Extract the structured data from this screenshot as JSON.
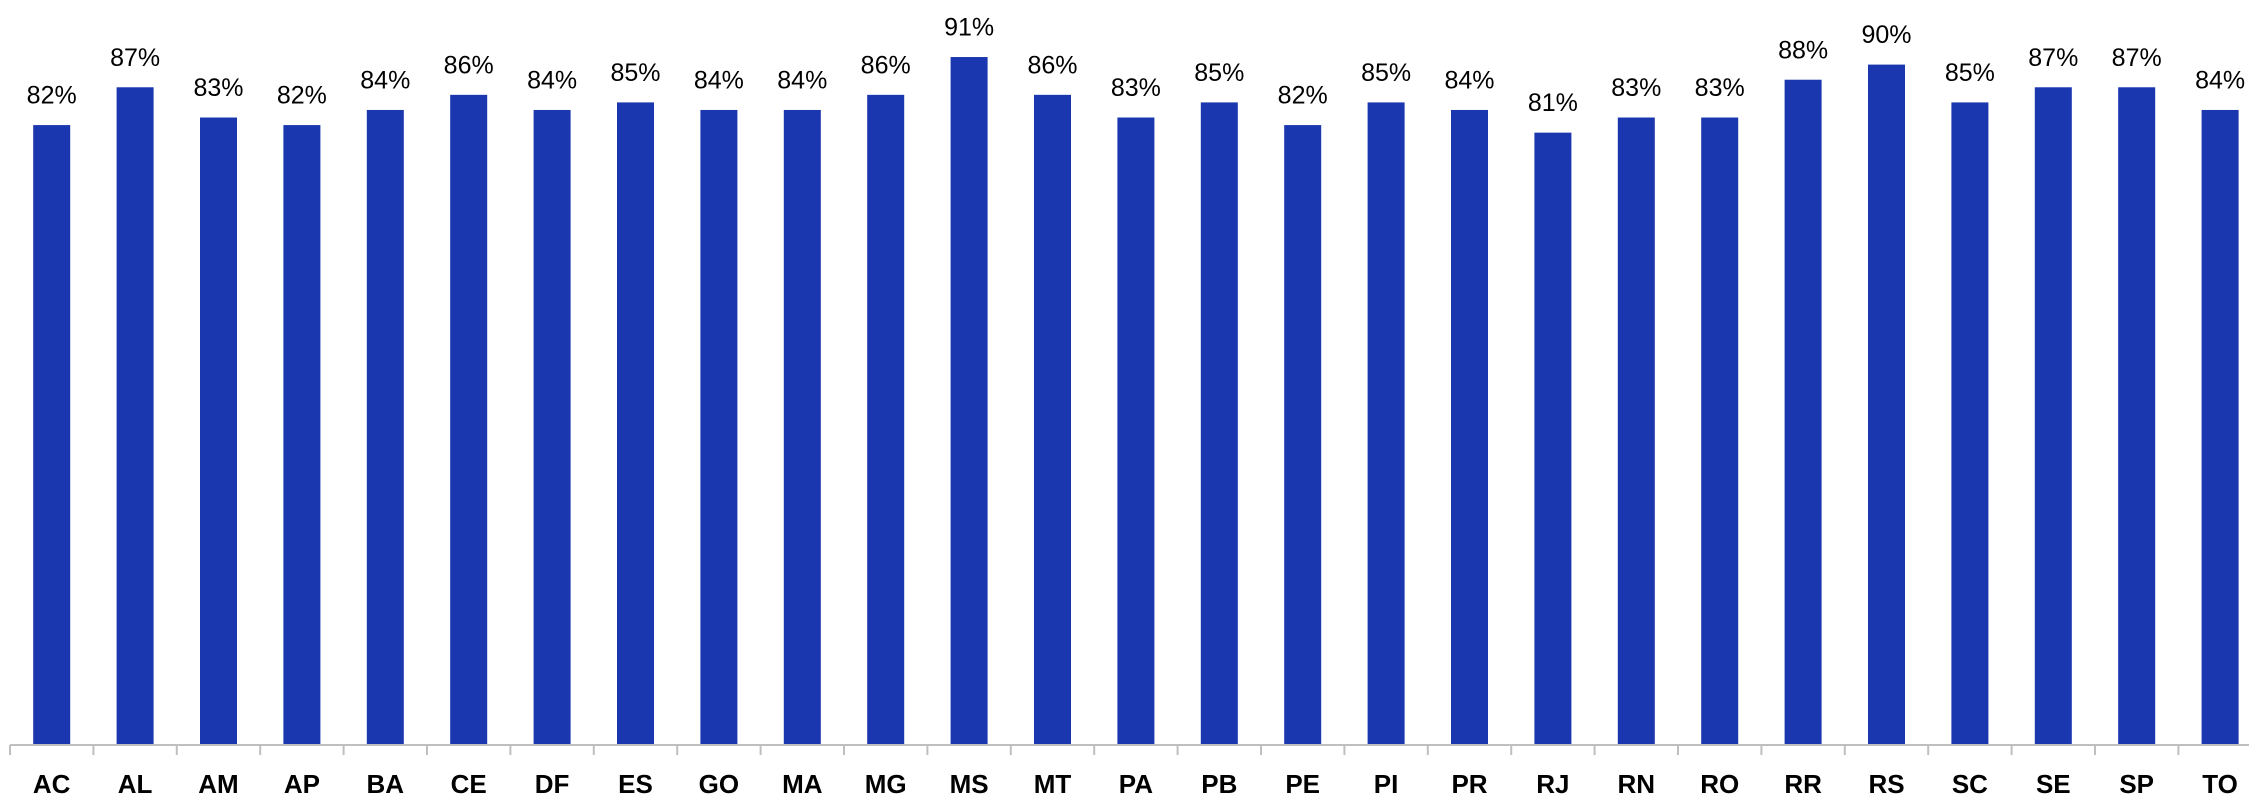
{
  "chart_data": {
    "type": "bar",
    "categories": [
      "AC",
      "AL",
      "AM",
      "AP",
      "BA",
      "CE",
      "DF",
      "ES",
      "GO",
      "MA",
      "MG",
      "MS",
      "MT",
      "PA",
      "PB",
      "PE",
      "PI",
      "PR",
      "RJ",
      "RN",
      "RO",
      "RR",
      "RS",
      "SC",
      "SE",
      "SP",
      "TO"
    ],
    "values": [
      82,
      87,
      83,
      82,
      84,
      86,
      84,
      85,
      84,
      84,
      86,
      91,
      86,
      83,
      85,
      82,
      85,
      84,
      81,
      83,
      83,
      88,
      90,
      85,
      87,
      87,
      84
    ],
    "value_labels": [
      "82%",
      "87%",
      "83%",
      "82%",
      "84%",
      "86%",
      "84%",
      "85%",
      "84%",
      "84%",
      "86%",
      "91%",
      "86%",
      "83%",
      "85%",
      "82%",
      "85%",
      "84%",
      "81%",
      "83%",
      "83%",
      "88%",
      "90%",
      "85%",
      "87%",
      "87%",
      "84%"
    ],
    "color": "#1a37b0",
    "ylim": [
      0,
      100
    ]
  }
}
